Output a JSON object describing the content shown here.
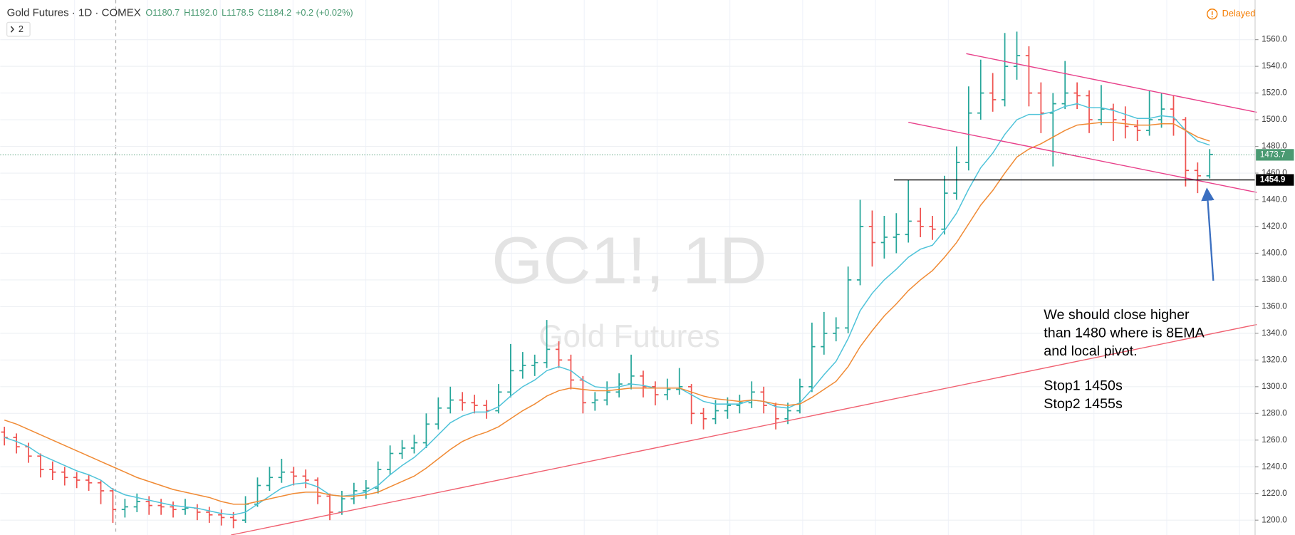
{
  "chart_data": {
    "type": "ohlc",
    "header": "Gold Futures · 1D · COMEX",
    "ohlc_text": [
      "O1180.7",
      "H1192.0",
      "L1178.5",
      "C1184.2",
      "+0.2 (+0.02%)"
    ],
    "indicator_count": "2",
    "status": "Delayed",
    "watermark": [
      "GC1!, 1D",
      "Gold Futures"
    ],
    "up_color": "#26a69a",
    "down_color": "#ef5350",
    "ylim": [
      1188.9,
      1589.7
    ],
    "yticks": [
      {
        "value": 1200,
        "label": "1200.0"
      },
      {
        "value": 1220,
        "label": "1220.0"
      },
      {
        "value": 1240,
        "label": "1240.0"
      },
      {
        "value": 1260,
        "label": "1260.0"
      },
      {
        "value": 1280,
        "label": "1280.0"
      },
      {
        "value": 1300,
        "label": "1300.0"
      },
      {
        "value": 1320,
        "label": "1320.0"
      },
      {
        "value": 1340,
        "label": "1340.0"
      },
      {
        "value": 1360,
        "label": "1360.0"
      },
      {
        "value": 1380,
        "label": "1380.0"
      },
      {
        "value": 1400,
        "label": "1400.0"
      },
      {
        "value": 1420,
        "label": "1420.0"
      },
      {
        "value": 1440,
        "label": "1440.0"
      },
      {
        "value": 1460,
        "label": "1460.0"
      },
      {
        "value": 1480,
        "label": "1480.0"
      },
      {
        "value": 1500,
        "label": "1500.0"
      },
      {
        "value": 1520,
        "label": "1520.0"
      },
      {
        "value": 1540,
        "label": "1540.0"
      },
      {
        "value": 1560,
        "label": "1560.0"
      }
    ],
    "grid": true,
    "bars": [
      [
        1266,
        1270,
        1256,
        1262
      ],
      [
        1262,
        1265,
        1250,
        1255
      ],
      [
        1255,
        1258,
        1243,
        1248
      ],
      [
        1248,
        1250,
        1232,
        1238
      ],
      [
        1238,
        1244,
        1230,
        1236
      ],
      [
        1236,
        1240,
        1226,
        1232
      ],
      [
        1232,
        1236,
        1224,
        1230
      ],
      [
        1230,
        1234,
        1222,
        1228
      ],
      [
        1228,
        1230,
        1212,
        1222
      ],
      [
        1222,
        1224,
        1198,
        1208
      ],
      [
        1208,
        1216,
        1202,
        1210
      ],
      [
        1210,
        1220,
        1206,
        1214
      ],
      [
        1214,
        1218,
        1204,
        1211
      ],
      [
        1211,
        1216,
        1204,
        1210
      ],
      [
        1210,
        1214,
        1202,
        1208
      ],
      [
        1208,
        1216,
        1204,
        1209
      ],
      [
        1209,
        1212,
        1200,
        1206
      ],
      [
        1206,
        1210,
        1198,
        1204
      ],
      [
        1204,
        1208,
        1196,
        1202
      ],
      [
        1202,
        1206,
        1194,
        1200
      ],
      [
        1200,
        1218,
        1198,
        1212
      ],
      [
        1212,
        1232,
        1210,
        1226
      ],
      [
        1226,
        1240,
        1222,
        1232
      ],
      [
        1232,
        1246,
        1228,
        1236
      ],
      [
        1236,
        1240,
        1226,
        1233
      ],
      [
        1233,
        1238,
        1224,
        1230
      ],
      [
        1230,
        1232,
        1212,
        1218
      ],
      [
        1218,
        1220,
        1200,
        1206
      ],
      [
        1206,
        1222,
        1204,
        1216
      ],
      [
        1216,
        1228,
        1212,
        1222
      ],
      [
        1222,
        1230,
        1216,
        1224
      ],
      [
        1224,
        1244,
        1220,
        1238
      ],
      [
        1238,
        1256,
        1234,
        1250
      ],
      [
        1250,
        1260,
        1246,
        1254
      ],
      [
        1254,
        1264,
        1250,
        1258
      ],
      [
        1258,
        1280,
        1254,
        1272
      ],
      [
        1272,
        1292,
        1268,
        1284
      ],
      [
        1284,
        1300,
        1280,
        1290
      ],
      [
        1290,
        1296,
        1282,
        1288
      ],
      [
        1288,
        1294,
        1280,
        1286
      ],
      [
        1286,
        1290,
        1276,
        1282
      ],
      [
        1282,
        1302,
        1280,
        1296
      ],
      [
        1296,
        1332,
        1292,
        1312
      ],
      [
        1312,
        1326,
        1306,
        1316
      ],
      [
        1316,
        1324,
        1308,
        1318
      ],
      [
        1318,
        1350,
        1314,
        1328
      ],
      [
        1328,
        1334,
        1314,
        1320
      ],
      [
        1320,
        1324,
        1298,
        1305
      ],
      [
        1305,
        1308,
        1280,
        1288
      ],
      [
        1288,
        1296,
        1282,
        1290
      ],
      [
        1290,
        1304,
        1286,
        1296
      ],
      [
        1296,
        1310,
        1292,
        1302
      ],
      [
        1302,
        1324,
        1298,
        1308
      ],
      [
        1308,
        1312,
        1292,
        1300
      ],
      [
        1300,
        1304,
        1286,
        1294
      ],
      [
        1294,
        1306,
        1290,
        1298
      ],
      [
        1298,
        1314,
        1294,
        1300
      ],
      [
        1300,
        1302,
        1272,
        1280
      ],
      [
        1280,
        1284,
        1268,
        1276
      ],
      [
        1276,
        1290,
        1272,
        1282
      ],
      [
        1282,
        1292,
        1276,
        1286
      ],
      [
        1286,
        1294,
        1280,
        1288
      ],
      [
        1288,
        1304,
        1284,
        1296
      ],
      [
        1296,
        1300,
        1280,
        1286
      ],
      [
        1286,
        1288,
        1268,
        1276
      ],
      [
        1276,
        1288,
        1272,
        1282
      ],
      [
        1282,
        1306,
        1280,
        1300
      ],
      [
        1300,
        1348,
        1296,
        1330
      ],
      [
        1330,
        1356,
        1324,
        1340
      ],
      [
        1340,
        1352,
        1334,
        1344
      ],
      [
        1344,
        1390,
        1340,
        1380
      ],
      [
        1380,
        1440,
        1376,
        1420
      ],
      [
        1420,
        1432,
        1390,
        1408
      ],
      [
        1408,
        1428,
        1396,
        1412
      ],
      [
        1412,
        1430,
        1400,
        1414
      ],
      [
        1414,
        1455,
        1408,
        1424
      ],
      [
        1424,
        1434,
        1412,
        1420
      ],
      [
        1420,
        1428,
        1410,
        1418
      ],
      [
        1418,
        1458,
        1414,
        1445
      ],
      [
        1445,
        1480,
        1440,
        1468
      ],
      [
        1468,
        1525,
        1462,
        1505
      ],
      [
        1505,
        1545,
        1500,
        1520
      ],
      [
        1520,
        1535,
        1506,
        1515
      ],
      [
        1515,
        1565,
        1510,
        1540
      ],
      [
        1540,
        1566,
        1530,
        1548
      ],
      [
        1548,
        1555,
        1510,
        1520
      ],
      [
        1520,
        1528,
        1490,
        1505
      ],
      [
        1505,
        1520,
        1465,
        1512
      ],
      [
        1512,
        1544,
        1508,
        1520
      ],
      [
        1520,
        1528,
        1508,
        1518
      ],
      [
        1518,
        1522,
        1490,
        1500
      ],
      [
        1500,
        1526,
        1496,
        1508
      ],
      [
        1508,
        1512,
        1484,
        1500
      ],
      [
        1500,
        1510,
        1486,
        1495
      ],
      [
        1495,
        1500,
        1484,
        1492
      ],
      [
        1492,
        1522,
        1488,
        1500
      ],
      [
        1500,
        1520,
        1494,
        1508
      ],
      [
        1508,
        1518,
        1488,
        1500
      ],
      [
        1500,
        1502,
        1450,
        1462
      ],
      [
        1462,
        1468,
        1445,
        1458
      ],
      [
        1458,
        1478,
        1456,
        1474
      ]
    ],
    "series": [
      {
        "color": "#4fc3d9",
        "values": [
          1262,
          1259,
          1255,
          1249,
          1245,
          1241,
          1237,
          1234,
          1230,
          1223,
          1219,
          1217,
          1215,
          1213,
          1211,
          1210,
          1209,
          1207,
          1205,
          1204,
          1206,
          1212,
          1218,
          1224,
          1227,
          1228,
          1225,
          1219,
          1218,
          1219,
          1221,
          1226,
          1234,
          1241,
          1247,
          1255,
          1264,
          1273,
          1278,
          1281,
          1281,
          1285,
          1293,
          1300,
          1305,
          1312,
          1315,
          1312,
          1305,
          1300,
          1299,
          1300,
          1302,
          1301,
          1299,
          1299,
          1299,
          1294,
          1289,
          1287,
          1287,
          1287,
          1290,
          1289,
          1285,
          1284,
          1288,
          1298,
          1309,
          1319,
          1336,
          1357,
          1370,
          1380,
          1388,
          1397,
          1403,
          1406,
          1417,
          1430,
          1448,
          1464,
          1475,
          1489,
          1500,
          1504,
          1504,
          1506,
          1510,
          1512,
          1509,
          1509,
          1507,
          1504,
          1501,
          1501,
          1503,
          1502,
          1492,
          1484,
          1481
        ]
      },
      {
        "color": "#f08a34",
        "values": [
          1275,
          1272,
          1268,
          1264,
          1260,
          1256,
          1252,
          1248,
          1244,
          1240,
          1236,
          1232,
          1229,
          1226,
          1223,
          1221,
          1219,
          1217,
          1214,
          1212,
          1212,
          1214,
          1216,
          1218,
          1220,
          1221,
          1221,
          1219,
          1218,
          1218,
          1219,
          1221,
          1225,
          1229,
          1233,
          1239,
          1246,
          1253,
          1259,
          1263,
          1266,
          1270,
          1276,
          1282,
          1287,
          1293,
          1297,
          1299,
          1298,
          1297,
          1297,
          1298,
          1299,
          1299,
          1299,
          1299,
          1299,
          1296,
          1293,
          1291,
          1290,
          1289,
          1290,
          1289,
          1287,
          1286,
          1287,
          1292,
          1298,
          1304,
          1315,
          1330,
          1342,
          1353,
          1362,
          1372,
          1380,
          1387,
          1397,
          1408,
          1422,
          1436,
          1447,
          1460,
          1472,
          1478,
          1482,
          1487,
          1492,
          1496,
          1497,
          1498,
          1498,
          1497,
          1496,
          1496,
          1497,
          1497,
          1492,
          1487,
          1484
        ]
      }
    ],
    "drawings": [
      {
        "color": "#f06070",
        "points": [
          [
            18.8,
            1188.9
          ],
          [
            103.9,
            1346.6
          ]
        ]
      },
      {
        "color": "#e8408a",
        "points": [
          [
            79.8,
            1549.5
          ],
          [
            103.9,
            1505.6
          ]
        ]
      },
      {
        "color": "#e8408a",
        "points": [
          [
            75,
            1498.1
          ],
          [
            103.9,
            1445.6
          ]
        ]
      },
      {
        "color": "#3b6fc0",
        "points": [
          [
            100.3,
            1379.4
          ],
          [
            99.8,
            1444.3
          ]
        ],
        "arrow": true
      }
    ],
    "horizontal_line": {
      "price": 1454.9,
      "start": 73.8,
      "color": "#000000"
    },
    "last_price": {
      "value": 1473.7,
      "color": "#4a9a72"
    },
    "annotation": [
      [
        "We should close higher",
        "than 1480 where is 8EMA",
        "and local pivot."
      ],
      [
        "Stop1 1450s",
        "Stop2 1455s"
      ]
    ]
  }
}
